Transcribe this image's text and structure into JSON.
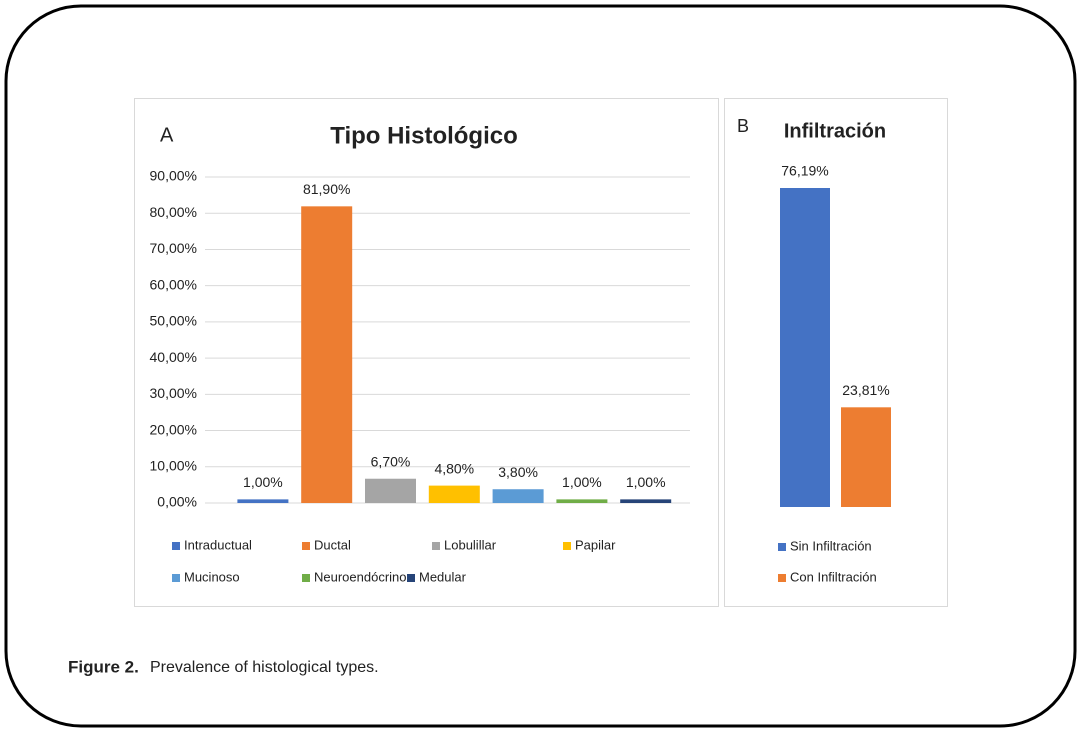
{
  "chart_data": [
    {
      "type": "bar",
      "panel": "A",
      "title": "Tipo Histológico",
      "series": [
        {
          "name": "Intraductual",
          "color": "#4472c4",
          "values": [
            1.0
          ],
          "value_labels": [
            "1,00%"
          ]
        },
        {
          "name": "Ductal",
          "color": "#ed7d31",
          "values": [
            81.9
          ],
          "value_labels": [
            "81,90%"
          ]
        },
        {
          "name": "Lobulillar",
          "color": "#a5a5a5",
          "values": [
            6.7
          ],
          "value_labels": [
            "6,70%"
          ]
        },
        {
          "name": "Papilar",
          "color": "#ffc000",
          "values": [
            4.8
          ],
          "value_labels": [
            "4,80%"
          ]
        },
        {
          "name": "Mucinoso",
          "color": "#5b9bd5",
          "values": [
            3.8
          ],
          "value_labels": [
            "3,80%"
          ]
        },
        {
          "name": "Neuroendócrino",
          "color": "#70ad47",
          "values": [
            1.0
          ],
          "value_labels": [
            "1,00%"
          ]
        },
        {
          "name": "Medular",
          "color": "#264478",
          "values": [
            1.0
          ],
          "value_labels": [
            "1,00%"
          ]
        }
      ],
      "ylim": [
        0,
        90
      ],
      "yticks": [
        {
          "value": 0,
          "label": "0,00%"
        },
        {
          "value": 10,
          "label": "10,00%"
        },
        {
          "value": 20,
          "label": "20,00%"
        },
        {
          "value": 30,
          "label": "30,00%"
        },
        {
          "value": 40,
          "label": "40,00%"
        },
        {
          "value": 50,
          "label": "50,00%"
        },
        {
          "value": 60,
          "label": "60,00%"
        },
        {
          "value": 70,
          "label": "70,00%"
        },
        {
          "value": 80,
          "label": "80,00%"
        },
        {
          "value": 90,
          "label": "90,00%"
        }
      ],
      "grid": true
    },
    {
      "type": "bar",
      "panel": "B",
      "title": "Infiltración",
      "series": [
        {
          "name": "Sin Infiltración",
          "color": "#4472c4",
          "values": [
            76.19
          ],
          "value_labels": [
            "76,19%"
          ]
        },
        {
          "name": "Con Infiltración",
          "color": "#ed7d31",
          "values": [
            23.81
          ],
          "value_labels": [
            "23,81%"
          ]
        }
      ]
    }
  ],
  "caption": {
    "label": "Figure 2.",
    "text": "Prevalence of histological types."
  }
}
